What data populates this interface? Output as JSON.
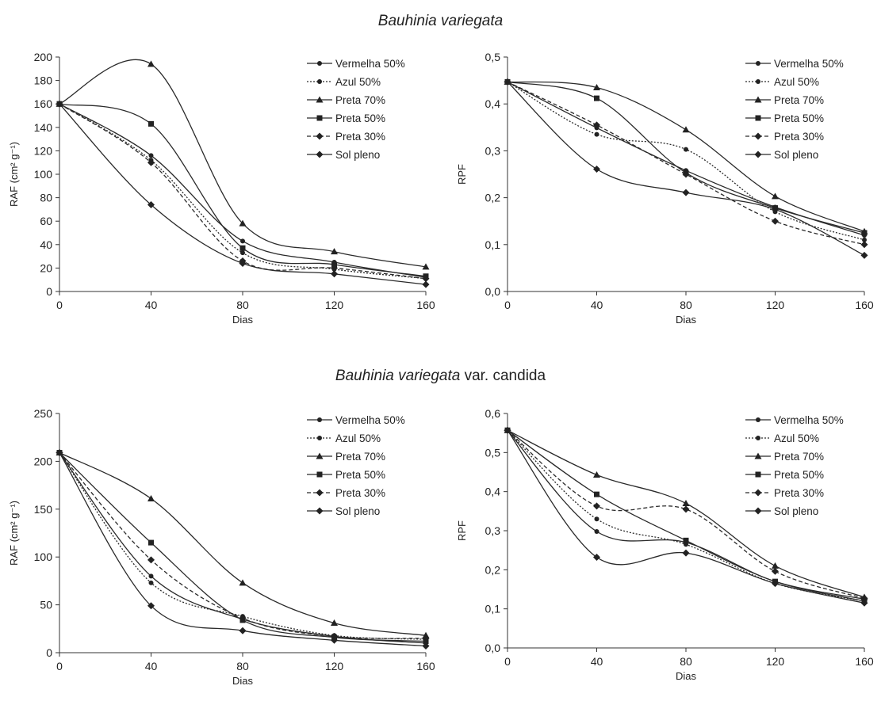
{
  "sections": [
    {
      "title_italic": "Bauhinia variegata",
      "title_rest": ""
    },
    {
      "title_italic": "Bauhinia variegata",
      "title_rest": " var. candida"
    }
  ],
  "chart_data": [
    {
      "type": "line",
      "xlabel": "Dias",
      "ylabel": "RAF (cm² g⁻¹)",
      "ylim": [
        0,
        200
      ],
      "yticks": [
        0,
        20,
        40,
        60,
        80,
        100,
        120,
        140,
        160,
        180,
        200
      ],
      "ytick_labels": [
        "0",
        "20",
        "40",
        "60",
        "80",
        "100",
        "120",
        "140",
        "160",
        "180",
        "200"
      ],
      "xticks": [
        0,
        40,
        80,
        120,
        160
      ],
      "x": [
        0,
        40,
        80,
        120,
        160
      ],
      "legend_position": "top-right",
      "series": [
        {
          "name": "Vermelha 50%",
          "marker": "dot",
          "dash": "solid",
          "values": [
            160,
            116,
            43,
            25,
            12
          ]
        },
        {
          "name": "Azul 50%",
          "marker": "dot",
          "dash": "dotted",
          "values": [
            160,
            112,
            33,
            19,
            11
          ]
        },
        {
          "name": "Preta 70%",
          "marker": "triangle",
          "dash": "solid",
          "values": [
            160,
            194,
            58,
            34,
            21
          ]
        },
        {
          "name": "Preta 50%",
          "marker": "square",
          "dash": "solid",
          "values": [
            160,
            143,
            37,
            23,
            13
          ]
        },
        {
          "name": "Preta 30%",
          "marker": "diamond",
          "dash": "dashed",
          "values": [
            160,
            110,
            26,
            20,
            11
          ]
        },
        {
          "name": "Sol pleno",
          "marker": "diamond",
          "dash": "solid",
          "values": [
            160,
            74,
            24,
            15,
            6
          ]
        }
      ]
    },
    {
      "type": "line",
      "xlabel": "Dias",
      "ylabel": "RPF",
      "ylim": [
        0,
        0.5
      ],
      "yticks": [
        0,
        0.1,
        0.2,
        0.3,
        0.4,
        0.5
      ],
      "ytick_labels": [
        "0,0",
        "0,1",
        "0,2",
        "0,3",
        "0,4",
        "0,5"
      ],
      "xticks": [
        0,
        40,
        80,
        120,
        160
      ],
      "x": [
        0,
        40,
        80,
        120,
        160
      ],
      "legend_position": "top-right",
      "series": [
        {
          "name": "Vermelha 50%",
          "marker": "dot",
          "dash": "solid",
          "values": [
            0.447,
            0.349,
            0.258,
            0.18,
            0.12
          ]
        },
        {
          "name": "Azul 50%",
          "marker": "dot",
          "dash": "dotted",
          "values": [
            0.447,
            0.335,
            0.303,
            0.17,
            0.11
          ]
        },
        {
          "name": "Preta 70%",
          "marker": "triangle",
          "dash": "solid",
          "values": [
            0.447,
            0.435,
            0.345,
            0.203,
            0.128
          ]
        },
        {
          "name": "Preta 50%",
          "marker": "square",
          "dash": "solid",
          "values": [
            0.447,
            0.412,
            0.253,
            0.178,
            0.125
          ]
        },
        {
          "name": "Preta 30%",
          "marker": "diamond",
          "dash": "dashed",
          "values": [
            0.447,
            0.355,
            0.25,
            0.15,
            0.1
          ]
        },
        {
          "name": "Sol pleno",
          "marker": "diamond",
          "dash": "solid",
          "values": [
            0.447,
            0.261,
            0.211,
            0.175,
            0.077
          ]
        }
      ]
    },
    {
      "type": "line",
      "xlabel": "Dias",
      "ylabel": "RAF (cm² g⁻¹)",
      "ylim": [
        0,
        250
      ],
      "yticks": [
        0,
        50,
        100,
        150,
        200,
        250
      ],
      "ytick_labels": [
        "0",
        "50",
        "100",
        "150",
        "200",
        "250"
      ],
      "xticks": [
        0,
        40,
        80,
        120,
        160
      ],
      "x": [
        0,
        40,
        80,
        120,
        160
      ],
      "legend_position": "top-right",
      "series": [
        {
          "name": "Vermelha 50%",
          "marker": "dot",
          "dash": "solid",
          "values": [
            209,
            80,
            35,
            17,
            10
          ]
        },
        {
          "name": "Azul 50%",
          "marker": "dot",
          "dash": "dotted",
          "values": [
            209,
            73,
            38,
            18,
            14
          ]
        },
        {
          "name": "Preta 70%",
          "marker": "triangle",
          "dash": "solid",
          "values": [
            209,
            161,
            73,
            31,
            18
          ]
        },
        {
          "name": "Preta 50%",
          "marker": "square",
          "dash": "solid",
          "values": [
            209,
            115,
            34,
            16,
            12
          ]
        },
        {
          "name": "Preta 30%",
          "marker": "diamond",
          "dash": "dashed",
          "values": [
            209,
            97,
            36,
            17,
            15
          ]
        },
        {
          "name": "Sol pleno",
          "marker": "diamond",
          "dash": "solid",
          "values": [
            209,
            49,
            23,
            13,
            7
          ]
        }
      ]
    },
    {
      "type": "line",
      "xlabel": "Dias",
      "ylabel": "RPF",
      "ylim": [
        0,
        0.6
      ],
      "yticks": [
        0,
        0.1,
        0.2,
        0.3,
        0.4,
        0.5,
        0.6
      ],
      "ytick_labels": [
        "0,0",
        "0,1",
        "0,2",
        "0,3",
        "0,4",
        "0,5",
        "0,6"
      ],
      "xticks": [
        0,
        40,
        80,
        120,
        160
      ],
      "x": [
        0,
        40,
        80,
        120,
        160
      ],
      "legend_position": "top-right",
      "series": [
        {
          "name": "Vermelha 50%",
          "marker": "dot",
          "dash": "solid",
          "values": [
            0.557,
            0.298,
            0.27,
            0.17,
            0.125
          ]
        },
        {
          "name": "Azul 50%",
          "marker": "dot",
          "dash": "dotted",
          "values": [
            0.557,
            0.33,
            0.265,
            0.165,
            0.12
          ]
        },
        {
          "name": "Preta 70%",
          "marker": "triangle",
          "dash": "solid",
          "values": [
            0.557,
            0.443,
            0.37,
            0.21,
            0.13
          ]
        },
        {
          "name": "Preta 50%",
          "marker": "square",
          "dash": "solid",
          "values": [
            0.557,
            0.393,
            0.275,
            0.17,
            0.12
          ]
        },
        {
          "name": "Preta 30%",
          "marker": "diamond",
          "dash": "dashed",
          "values": [
            0.557,
            0.363,
            0.355,
            0.196,
            0.127
          ]
        },
        {
          "name": "Sol pleno",
          "marker": "diamond",
          "dash": "solid",
          "values": [
            0.557,
            0.232,
            0.243,
            0.165,
            0.115
          ]
        }
      ]
    }
  ]
}
